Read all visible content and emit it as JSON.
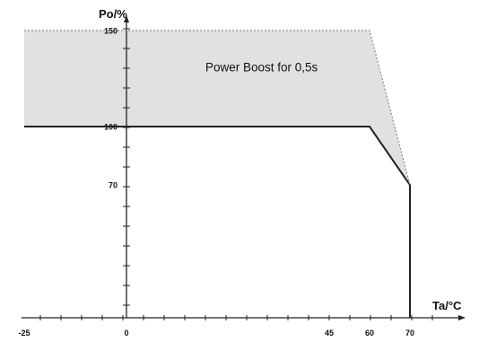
{
  "chart_data": {
    "type": "line",
    "xlabel": "Ta/°C",
    "ylabel": "Po/%",
    "x_ticks": [
      -25,
      0,
      45,
      60,
      70
    ],
    "y_ticks": [
      70,
      100,
      150
    ],
    "xlim": [
      -25,
      85
    ],
    "ylim": [
      0,
      160
    ],
    "grid": false,
    "series": [
      {
        "style": "solid",
        "color": "#222222",
        "points": [
          [
            -25,
            100
          ],
          [
            60,
            100
          ],
          [
            70,
            70
          ],
          [
            70,
            0
          ]
        ]
      },
      {
        "style": "dotted",
        "color": "#8c8c8c",
        "points": [
          [
            -25,
            150
          ],
          [
            60,
            150
          ],
          [
            70,
            70
          ]
        ]
      }
    ],
    "fill_region": {
      "color": "#e1e1e1",
      "upper": [
        [
          -25,
          150
        ],
        [
          60,
          150
        ],
        [
          70,
          70
        ]
      ],
      "lower": [
        [
          -25,
          100
        ],
        [
          60,
          100
        ],
        [
          70,
          70
        ]
      ]
    },
    "annotations": [
      {
        "text": "Power Boost for 0,5s",
        "x": 30,
        "y": 131
      }
    ]
  }
}
